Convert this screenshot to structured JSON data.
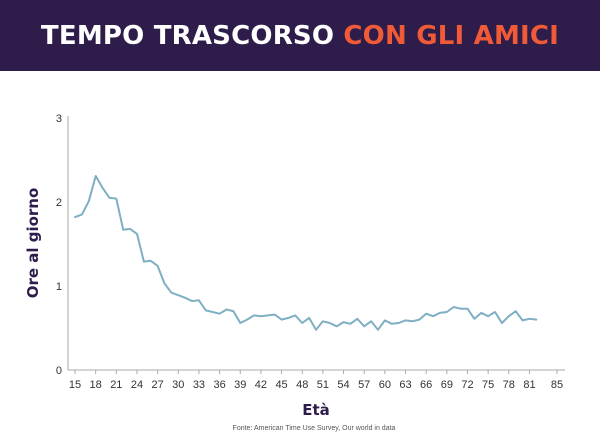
{
  "header": {
    "title_part1": "TEMPO TRASCORSO",
    "title_part2": "CON GLI AMICI"
  },
  "colors": {
    "header_bg": "#2e1c4a",
    "accent": "#f05a37",
    "line": "#7fafc3",
    "axis": "#aaaaaa",
    "label": "#2e1c4a"
  },
  "source": "Fonte: American Time Use Survey, Our world in data",
  "chart_data": {
    "type": "line",
    "xlabel": "Età",
    "ylabel": "Ore al giorno",
    "xlim": [
      15,
      85
    ],
    "ylim": [
      0,
      3
    ],
    "xticks": [
      15,
      18,
      21,
      24,
      27,
      30,
      33,
      36,
      39,
      42,
      45,
      48,
      51,
      54,
      57,
      60,
      63,
      66,
      69,
      72,
      75,
      78,
      81,
      85
    ],
    "yticks": [
      0,
      1,
      2,
      3
    ],
    "grid": false,
    "series": [
      {
        "x": [
          15,
          16,
          17,
          18,
          19,
          20,
          21,
          22,
          23,
          24,
          25,
          26,
          27,
          28,
          29,
          30,
          31,
          32,
          33,
          34,
          35,
          36,
          37,
          38,
          39,
          40,
          41,
          42,
          43,
          44,
          45,
          46,
          47,
          48,
          49,
          50,
          51,
          52,
          53,
          54,
          55,
          56,
          57,
          58,
          59,
          60,
          61,
          62,
          63,
          64,
          65,
          66,
          67,
          68,
          69,
          70,
          71,
          72,
          73,
          74,
          75,
          76,
          77,
          78,
          79,
          80,
          81,
          82
        ],
        "y": [
          1.82,
          1.85,
          2.01,
          2.31,
          2.17,
          2.05,
          2.04,
          1.67,
          1.68,
          1.62,
          1.29,
          1.3,
          1.24,
          1.03,
          0.92,
          0.89,
          0.86,
          0.82,
          0.83,
          0.71,
          0.69,
          0.67,
          0.72,
          0.7,
          0.56,
          0.6,
          0.65,
          0.64,
          0.65,
          0.66,
          0.6,
          0.62,
          0.65,
          0.56,
          0.62,
          0.48,
          0.58,
          0.56,
          0.52,
          0.57,
          0.55,
          0.61,
          0.52,
          0.58,
          0.48,
          0.59,
          0.55,
          0.56,
          0.59,
          0.58,
          0.6,
          0.67,
          0.64,
          0.68,
          0.69,
          0.75,
          0.73,
          0.73,
          0.61,
          0.68,
          0.64,
          0.69,
          0.56,
          0.64,
          0.7,
          0.59,
          0.61,
          0.6
        ]
      }
    ]
  }
}
